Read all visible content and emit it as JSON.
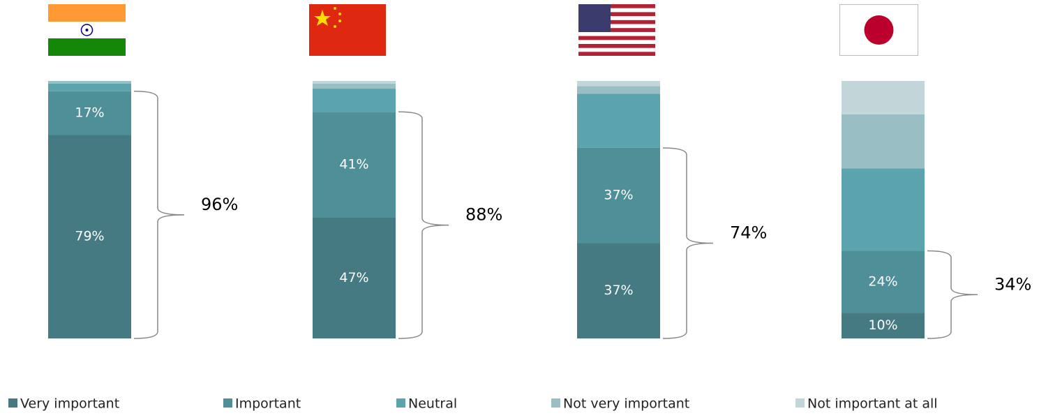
{
  "chart_data": {
    "type": "stacked_bar",
    "categories": [
      null,
      null,
      null,
      null
    ],
    "ylim": [
      0,
      100
    ],
    "series": [
      {
        "name": "Very important",
        "color": "#457a82",
        "values": [
          79,
          47,
          37,
          10
        ],
        "value_labels": [
          "79%",
          "47%",
          "37%",
          "10%"
        ]
      },
      {
        "name": "Important",
        "color": "#4f8f97",
        "values": [
          17,
          41,
          37,
          24
        ],
        "value_labels": [
          "17%",
          "41%",
          "37%",
          "24%"
        ]
      },
      {
        "name": "Neutral",
        "color": "#5ba3ad",
        "values": [
          3,
          9,
          21,
          32
        ]
      },
      {
        "name": "Not very important",
        "color": "#99bfc4",
        "values": [
          1,
          2,
          3,
          21
        ]
      },
      {
        "name": "Not important at all",
        "color": "#c2d6da",
        "values": [
          0,
          1,
          2,
          13
        ]
      }
    ],
    "brackets": {
      "values": [
        96,
        88,
        74,
        34
      ],
      "value_labels": [
        "96%",
        "88%",
        "74%",
        "34%"
      ]
    }
  }
}
